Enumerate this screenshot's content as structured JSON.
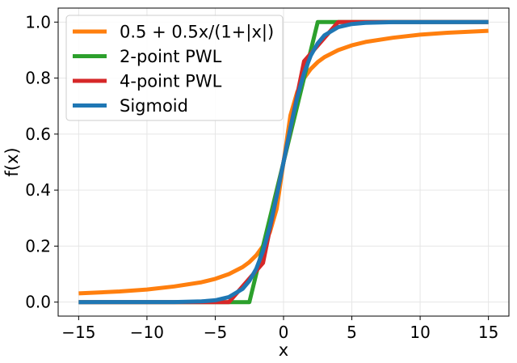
{
  "chart_data": {
    "type": "line",
    "title": "",
    "xlabel": "x",
    "ylabel": "f(x)",
    "xlim": [
      -16.5,
      16.5
    ],
    "ylim": [
      -0.05,
      1.05
    ],
    "xticks": [
      -15,
      -10,
      -5,
      0,
      5,
      10,
      15
    ],
    "xtick_labels": [
      "−15",
      "−10",
      "−5",
      "0",
      "5",
      "10",
      "15"
    ],
    "yticks": [
      0.0,
      0.2,
      0.4,
      0.6,
      0.8,
      1.0
    ],
    "ytick_labels": [
      "0.0",
      "0.2",
      "0.4",
      "0.6",
      "0.8",
      "1.0"
    ],
    "grid": true,
    "legend_position": "top-left",
    "series": [
      {
        "name": "0.5 + 0.5x/(1+|x|)",
        "color": "#ff7f0e",
        "x": [
          -15,
          -12,
          -10,
          -8,
          -6,
          -5,
          -4,
          -3,
          -2.5,
          -2,
          -1.5,
          -1,
          -0.5,
          0,
          0.5,
          1,
          1.5,
          2,
          2.5,
          3,
          4,
          5,
          6,
          8,
          10,
          12,
          15
        ],
        "y": [
          0.031,
          0.038,
          0.045,
          0.056,
          0.071,
          0.083,
          0.1,
          0.125,
          0.143,
          0.167,
          0.2,
          0.25,
          0.333,
          0.5,
          0.667,
          0.75,
          0.8,
          0.833,
          0.857,
          0.875,
          0.9,
          0.917,
          0.929,
          0.944,
          0.955,
          0.962,
          0.969
        ]
      },
      {
        "name": "2-point PWL",
        "color": "#2ca02c",
        "x": [
          -15,
          -2.5,
          2.5,
          15
        ],
        "y": [
          0.0,
          0.0,
          1.0,
          1.0
        ]
      },
      {
        "name": "4-point PWL",
        "color": "#d62728",
        "x": [
          -15,
          -4,
          -1.5,
          1.5,
          4,
          15
        ],
        "y": [
          0.0,
          0.0,
          0.14,
          0.86,
          1.0,
          1.0
        ]
      },
      {
        "name": "Sigmoid",
        "color": "#1f77b4",
        "x": [
          -15,
          -8,
          -6,
          -5,
          -4,
          -3,
          -2.5,
          -2,
          -1.5,
          -1,
          -0.5,
          0,
          0.5,
          1,
          1.5,
          2,
          2.5,
          3,
          4,
          5,
          6,
          8,
          15
        ],
        "y": [
          0.0,
          0.0003,
          0.0025,
          0.0067,
          0.018,
          0.047,
          0.076,
          0.119,
          0.182,
          0.269,
          0.378,
          0.5,
          0.622,
          0.731,
          0.818,
          0.881,
          0.924,
          0.953,
          0.982,
          0.993,
          0.9975,
          0.9997,
          1.0
        ]
      }
    ]
  }
}
